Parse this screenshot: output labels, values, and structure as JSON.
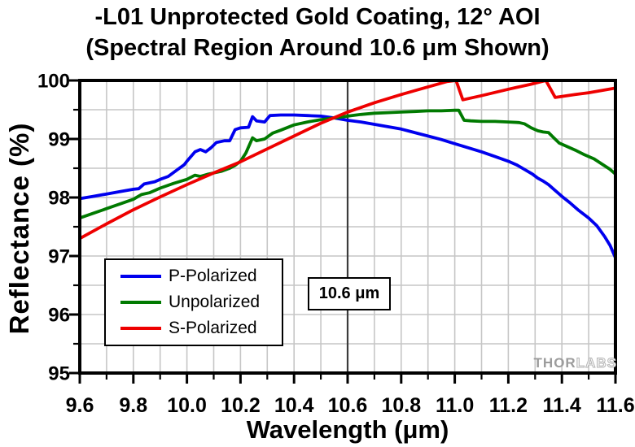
{
  "title": {
    "line1": "-L01 Unprotected Gold Coating, 12° AOI",
    "line2": "(Spectral Region Around 10.6 μm Shown)"
  },
  "watermark": {
    "part1": "THOR",
    "part2": "LABS"
  },
  "annotation": {
    "label": "10.6 μm",
    "x_value": 10.6
  },
  "chart_data": {
    "type": "line",
    "xlabel": "Wavelength (μm)",
    "ylabel": "Reflectance (%)",
    "xlim": [
      9.6,
      11.6
    ],
    "ylim": [
      95,
      100
    ],
    "x_major_ticks": [
      9.6,
      9.8,
      10.0,
      10.2,
      10.4,
      10.6,
      10.8,
      11.0,
      11.2,
      11.4,
      11.6
    ],
    "x_tick_labels": [
      "9.6",
      "9.8",
      "10.0",
      "10.2",
      "10.4",
      "10.6",
      "10.8",
      "11.0",
      "11.2",
      "11.4",
      "11.6"
    ],
    "x_minor_step": 0.1,
    "y_major_ticks": [
      95,
      96,
      97,
      98,
      99,
      100
    ],
    "y_tick_labels": [
      "95",
      "96",
      "97",
      "98",
      "99",
      "100"
    ],
    "y_minor_step": 0.5,
    "grid": {
      "on": true,
      "color": "#c6c6c6",
      "x_step": 0.1,
      "y_step": 0.5
    },
    "legend_position": "lower-left",
    "reference_line": {
      "x": 10.6,
      "color": "#3b3b3b"
    },
    "series": [
      {
        "name": "P-Polarized",
        "color": "#0000ee",
        "points": [
          [
            9.6,
            97.98
          ],
          [
            9.65,
            98.02
          ],
          [
            9.7,
            98.06
          ],
          [
            9.75,
            98.1
          ],
          [
            9.8,
            98.14
          ],
          [
            9.82,
            98.15
          ],
          [
            9.84,
            98.23
          ],
          [
            9.88,
            98.27
          ],
          [
            9.9,
            98.31
          ],
          [
            9.93,
            98.36
          ],
          [
            9.96,
            98.46
          ],
          [
            9.99,
            98.56
          ],
          [
            10.0,
            98.62
          ],
          [
            10.03,
            98.78
          ],
          [
            10.05,
            98.82
          ],
          [
            10.07,
            98.78
          ],
          [
            10.09,
            98.85
          ],
          [
            10.11,
            98.94
          ],
          [
            10.14,
            98.97
          ],
          [
            10.16,
            98.97
          ],
          [
            10.18,
            99.16
          ],
          [
            10.2,
            99.19
          ],
          [
            10.23,
            99.2
          ],
          [
            10.245,
            99.38
          ],
          [
            10.26,
            99.31
          ],
          [
            10.29,
            99.29
          ],
          [
            10.31,
            99.4
          ],
          [
            10.35,
            99.41
          ],
          [
            10.4,
            99.41
          ],
          [
            10.45,
            99.4
          ],
          [
            10.5,
            99.39
          ],
          [
            10.55,
            99.36
          ],
          [
            10.6,
            99.32
          ],
          [
            10.65,
            99.29
          ],
          [
            10.7,
            99.25
          ],
          [
            10.75,
            99.21
          ],
          [
            10.8,
            99.17
          ],
          [
            10.85,
            99.11
          ],
          [
            10.9,
            99.05
          ],
          [
            10.95,
            98.99
          ],
          [
            11.0,
            98.92
          ],
          [
            11.05,
            98.85
          ],
          [
            11.1,
            98.78
          ],
          [
            11.15,
            98.7
          ],
          [
            11.2,
            98.62
          ],
          [
            11.23,
            98.56
          ],
          [
            11.26,
            98.48
          ],
          [
            11.29,
            98.4
          ],
          [
            11.31,
            98.33
          ],
          [
            11.33,
            98.28
          ],
          [
            11.35,
            98.22
          ],
          [
            11.37,
            98.14
          ],
          [
            11.4,
            98.02
          ],
          [
            11.43,
            97.91
          ],
          [
            11.46,
            97.79
          ],
          [
            11.5,
            97.65
          ],
          [
            11.53,
            97.52
          ],
          [
            11.56,
            97.33
          ],
          [
            11.58,
            97.18
          ],
          [
            11.6,
            96.97
          ]
        ]
      },
      {
        "name": "Unpolarized",
        "color": "#007a00",
        "points": [
          [
            9.6,
            97.65
          ],
          [
            9.65,
            97.73
          ],
          [
            9.7,
            97.81
          ],
          [
            9.75,
            97.89
          ],
          [
            9.8,
            97.97
          ],
          [
            9.83,
            98.05
          ],
          [
            9.86,
            98.08
          ],
          [
            9.9,
            98.16
          ],
          [
            9.95,
            98.24
          ],
          [
            10.0,
            98.31
          ],
          [
            10.03,
            98.38
          ],
          [
            10.05,
            98.36
          ],
          [
            10.08,
            98.4
          ],
          [
            10.1,
            98.42
          ],
          [
            10.13,
            98.45
          ],
          [
            10.16,
            98.5
          ],
          [
            10.18,
            98.55
          ],
          [
            10.2,
            98.62
          ],
          [
            10.22,
            98.76
          ],
          [
            10.245,
            99.02
          ],
          [
            10.26,
            98.97
          ],
          [
            10.29,
            99.0
          ],
          [
            10.32,
            99.1
          ],
          [
            10.35,
            99.15
          ],
          [
            10.4,
            99.24
          ],
          [
            10.45,
            99.29
          ],
          [
            10.5,
            99.33
          ],
          [
            10.55,
            99.36
          ],
          [
            10.6,
            99.39
          ],
          [
            10.65,
            99.42
          ],
          [
            10.7,
            99.44
          ],
          [
            10.75,
            99.45
          ],
          [
            10.8,
            99.46
          ],
          [
            10.85,
            99.47
          ],
          [
            10.9,
            99.48
          ],
          [
            10.95,
            99.48
          ],
          [
            11.0,
            99.49
          ],
          [
            11.015,
            99.49
          ],
          [
            11.035,
            99.32
          ],
          [
            11.06,
            99.31
          ],
          [
            11.1,
            99.3
          ],
          [
            11.15,
            99.3
          ],
          [
            11.2,
            99.29
          ],
          [
            11.24,
            99.28
          ],
          [
            11.26,
            99.26
          ],
          [
            11.285,
            99.19
          ],
          [
            11.31,
            99.14
          ],
          [
            11.33,
            99.12
          ],
          [
            11.35,
            99.11
          ],
          [
            11.37,
            99.02
          ],
          [
            11.39,
            98.93
          ],
          [
            11.42,
            98.87
          ],
          [
            11.45,
            98.81
          ],
          [
            11.48,
            98.74
          ],
          [
            11.52,
            98.66
          ],
          [
            11.55,
            98.57
          ],
          [
            11.58,
            98.48
          ],
          [
            11.6,
            98.4
          ]
        ]
      },
      {
        "name": "S-Polarized",
        "color": "#ee0000",
        "points": [
          [
            9.6,
            97.3
          ],
          [
            9.7,
            97.55
          ],
          [
            9.8,
            97.79
          ],
          [
            9.9,
            98.01
          ],
          [
            10.0,
            98.22
          ],
          [
            10.1,
            98.42
          ],
          [
            10.2,
            98.61
          ],
          [
            10.3,
            98.83
          ],
          [
            10.4,
            99.05
          ],
          [
            10.5,
            99.27
          ],
          [
            10.6,
            99.46
          ],
          [
            10.7,
            99.62
          ],
          [
            10.8,
            99.76
          ],
          [
            10.9,
            99.89
          ],
          [
            10.97,
            99.98
          ],
          [
            11.005,
            100.0
          ],
          [
            11.03,
            99.67
          ],
          [
            11.1,
            99.74
          ],
          [
            11.2,
            99.85
          ],
          [
            11.28,
            99.93
          ],
          [
            11.34,
            100.0
          ],
          [
            11.375,
            99.71
          ],
          [
            11.45,
            99.76
          ],
          [
            11.5,
            99.79
          ],
          [
            11.55,
            99.83
          ],
          [
            11.6,
            99.87
          ]
        ]
      }
    ]
  }
}
